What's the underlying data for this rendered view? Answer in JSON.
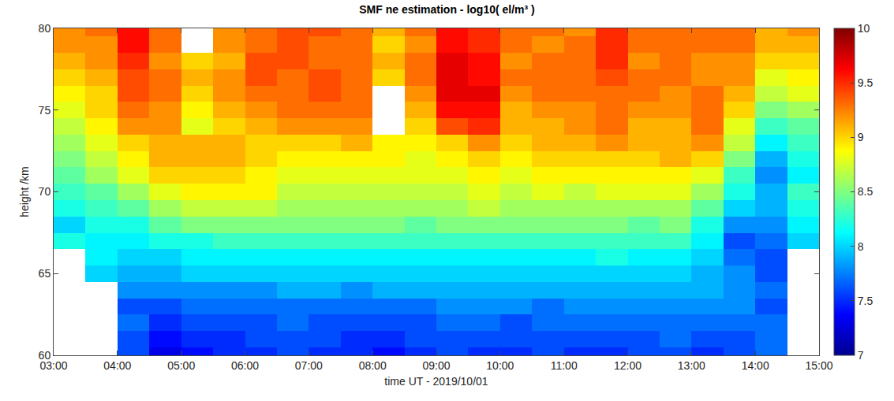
{
  "chart_data": {
    "type": "heatmap",
    "title": "SMF ne estimation - log10( el/m³ )",
    "x_label": "time UT - 2019/10/01",
    "y_label": "height /km",
    "x": [
      "2019-10-01 03:15",
      "2019-10-01 03:45",
      "2019-10-01 04:15",
      "2019-10-01 04:45",
      "2019-10-01 05:15",
      "2019-10-01 05:45",
      "2019-10-01 06:15",
      "2019-10-01 06:45",
      "2019-10-01 07:15",
      "2019-10-01 07:45",
      "2019-10-01 08:15",
      "2019-10-01 08:45",
      "2019-10-01 09:15",
      "2019-10-01 09:45",
      "2019-10-01 10:15",
      "2019-10-01 10:45",
      "2019-10-01 11:15",
      "2019-10-01 11:45",
      "2019-10-01 12:15",
      "2019-10-01 12:45",
      "2019-10-01 13:15",
      "2019-10-01 13:45",
      "2019-10-01 14:15",
      "2019-10-01 14:45"
    ],
    "y": [
      60,
      61,
      62,
      63,
      64,
      65,
      66,
      67,
      68,
      69,
      70,
      71,
      72,
      73,
      74,
      75,
      76,
      77,
      78,
      79,
      80
    ],
    "z": [
      [
        null,
        null,
        7.6,
        7.3,
        7.4,
        7.5,
        7.5,
        7.6,
        7.5,
        7.5,
        7.4,
        7.5,
        7.6,
        7.5,
        7.5,
        7.6,
        7.5,
        7.5,
        7.6,
        7.6,
        7.5,
        7.6,
        7.7,
        null
      ],
      [
        null,
        null,
        7.6,
        7.4,
        7.5,
        7.5,
        7.6,
        7.6,
        7.6,
        7.5,
        7.5,
        7.6,
        7.6,
        7.6,
        7.6,
        7.6,
        7.6,
        7.6,
        7.6,
        7.7,
        7.6,
        7.6,
        7.7,
        null
      ],
      [
        null,
        null,
        7.7,
        7.5,
        7.6,
        7.6,
        7.6,
        7.7,
        7.6,
        7.6,
        7.6,
        7.6,
        7.7,
        7.7,
        7.6,
        7.7,
        7.7,
        7.7,
        7.7,
        7.7,
        7.7,
        7.7,
        7.7,
        null
      ],
      [
        null,
        null,
        7.6,
        7.6,
        7.7,
        7.7,
        7.7,
        7.7,
        7.7,
        7.7,
        7.7,
        7.7,
        7.8,
        7.8,
        7.8,
        7.7,
        7.8,
        7.8,
        7.8,
        7.8,
        7.8,
        7.8,
        7.6,
        null
      ],
      [
        null,
        null,
        7.8,
        7.8,
        7.8,
        7.8,
        7.8,
        7.9,
        7.9,
        7.8,
        7.9,
        7.9,
        7.9,
        7.9,
        7.9,
        7.9,
        7.9,
        7.9,
        7.9,
        7.9,
        7.9,
        7.8,
        7.7,
        null
      ],
      [
        null,
        8.0,
        7.9,
        7.9,
        8.0,
        8.0,
        8.0,
        8.0,
        8.0,
        8.0,
        8.0,
        8.0,
        8.0,
        8.0,
        8.0,
        8.0,
        8.0,
        8.0,
        8.0,
        8.0,
        7.9,
        7.8,
        7.6,
        null
      ],
      [
        null,
        8.1,
        8.0,
        8.0,
        8.1,
        8.1,
        8.1,
        8.1,
        8.1,
        8.1,
        8.1,
        8.1,
        8.1,
        8.1,
        8.1,
        8.1,
        8.1,
        8.2,
        8.1,
        8.1,
        8.0,
        7.7,
        7.6,
        null
      ],
      [
        8.2,
        8.1,
        8.1,
        8.2,
        8.2,
        8.3,
        8.3,
        8.3,
        8.3,
        8.3,
        8.3,
        8.3,
        8.3,
        8.3,
        8.3,
        8.3,
        8.3,
        8.3,
        8.3,
        8.3,
        8.1,
        7.6,
        7.7,
        8.0
      ],
      [
        8.0,
        8.2,
        8.2,
        8.4,
        8.5,
        8.5,
        8.5,
        8.5,
        8.5,
        8.5,
        8.5,
        8.4,
        8.5,
        8.5,
        8.5,
        8.5,
        8.5,
        8.5,
        8.4,
        8.5,
        8.2,
        7.8,
        7.8,
        8.1
      ],
      [
        8.2,
        8.3,
        8.4,
        8.6,
        8.7,
        8.7,
        8.7,
        8.6,
        8.6,
        8.6,
        8.6,
        8.6,
        8.6,
        8.7,
        8.6,
        8.6,
        8.6,
        8.6,
        8.6,
        8.6,
        8.4,
        8.0,
        7.9,
        8.2
      ],
      [
        8.3,
        8.4,
        8.6,
        8.8,
        8.9,
        8.9,
        8.9,
        8.7,
        8.7,
        8.7,
        8.7,
        8.7,
        8.7,
        8.8,
        8.7,
        8.8,
        8.7,
        8.8,
        8.8,
        8.8,
        8.6,
        8.2,
        7.9,
        8.3
      ],
      [
        8.4,
        8.6,
        8.8,
        9.0,
        9.0,
        9.0,
        8.9,
        8.8,
        8.8,
        8.8,
        8.8,
        8.8,
        8.8,
        8.9,
        8.8,
        8.9,
        8.9,
        8.9,
        8.9,
        8.9,
        8.8,
        8.3,
        7.8,
        8.1
      ],
      [
        8.5,
        8.7,
        8.9,
        9.1,
        9.1,
        9.1,
        9.0,
        8.9,
        8.9,
        8.9,
        8.9,
        8.8,
        8.9,
        9.0,
        8.9,
        9.0,
        9.0,
        9.0,
        9.0,
        9.1,
        9.0,
        8.5,
        7.9,
        8.2
      ],
      [
        8.6,
        8.8,
        9.0,
        9.1,
        9.1,
        9.1,
        9.0,
        9.0,
        9.0,
        9.1,
        8.9,
        8.9,
        9.0,
        9.2,
        9.0,
        9.1,
        9.1,
        9.2,
        9.1,
        9.1,
        9.2,
        8.7,
        8.1,
        8.3
      ],
      [
        8.7,
        8.9,
        9.2,
        9.2,
        8.8,
        9.0,
        9.1,
        9.2,
        9.2,
        9.2,
        null,
        9.0,
        9.4,
        9.5,
        9.1,
        9.1,
        9.2,
        9.3,
        9.1,
        9.1,
        9.3,
        8.8,
        8.3,
        8.4
      ],
      [
        8.8,
        9.0,
        9.3,
        9.2,
        8.9,
        9.1,
        9.2,
        9.3,
        9.3,
        9.3,
        null,
        9.1,
        9.6,
        9.6,
        9.1,
        9.2,
        9.2,
        9.3,
        9.2,
        9.2,
        9.3,
        9.0,
        8.5,
        8.6
      ],
      [
        8.9,
        9.0,
        9.4,
        9.3,
        9.0,
        9.2,
        9.3,
        9.3,
        9.4,
        9.3,
        null,
        9.2,
        9.7,
        9.7,
        9.2,
        9.3,
        9.3,
        9.3,
        9.3,
        9.2,
        9.3,
        9.1,
        8.7,
        8.8
      ],
      [
        9.0,
        9.1,
        9.4,
        9.3,
        9.1,
        9.2,
        9.4,
        9.3,
        9.4,
        9.3,
        9.0,
        9.3,
        9.7,
        9.6,
        9.3,
        9.3,
        9.3,
        9.4,
        9.3,
        9.3,
        9.2,
        9.2,
        8.8,
        8.9
      ],
      [
        9.1,
        9.2,
        9.5,
        9.2,
        9.0,
        9.1,
        9.4,
        9.4,
        9.3,
        9.3,
        9.1,
        9.3,
        9.7,
        9.6,
        9.2,
        9.3,
        9.3,
        9.5,
        9.2,
        9.3,
        9.2,
        9.2,
        9.0,
        9.0
      ],
      [
        9.2,
        9.2,
        9.6,
        9.3,
        null,
        9.2,
        9.3,
        9.4,
        9.3,
        9.3,
        9.0,
        9.2,
        9.6,
        9.5,
        9.3,
        9.2,
        9.3,
        9.5,
        9.3,
        9.3,
        9.3,
        9.3,
        9.1,
        9.1
      ],
      [
        9.2,
        9.3,
        9.6,
        9.3,
        null,
        9.2,
        9.3,
        9.4,
        9.4,
        9.3,
        9.1,
        9.3,
        9.6,
        9.5,
        9.3,
        9.3,
        9.2,
        9.5,
        9.3,
        9.3,
        9.3,
        9.3,
        9.1,
        9.2
      ]
    ],
    "xlim": [
      "2019-10-01 03:00",
      "2019-10-01 15:00"
    ],
    "xticks": [
      {
        "value": "2019-10-01 03:00",
        "label": "03:00"
      },
      {
        "value": "2019-10-01 04:00",
        "label": "04:00"
      },
      {
        "value": "2019-10-01 05:00",
        "label": "05:00"
      },
      {
        "value": "2019-10-01 06:00",
        "label": "06:00"
      },
      {
        "value": "2019-10-01 07:00",
        "label": "07:00"
      },
      {
        "value": "2019-10-01 08:00",
        "label": "08:00"
      },
      {
        "value": "2019-10-01 09:00",
        "label": "09:00"
      },
      {
        "value": "2019-10-01 10:00",
        "label": "10:00"
      },
      {
        "value": "2019-10-01 11:00",
        "label": "11:00"
      },
      {
        "value": "2019-10-01 12:00",
        "label": "12:00"
      },
      {
        "value": "2019-10-01 13:00",
        "label": "13:00"
      },
      {
        "value": "2019-10-01 14:00",
        "label": "14:00"
      },
      {
        "value": "2019-10-01 15:00",
        "label": "15:00"
      }
    ],
    "ylim": [
      60,
      80
    ],
    "yticks": [
      60,
      65,
      70,
      75,
      80
    ],
    "colorbar_range": [
      7,
      10
    ],
    "colorbar_ticks": [
      7,
      7.5,
      8,
      8.5,
      9,
      9.5,
      10
    ],
    "grid": false
  }
}
